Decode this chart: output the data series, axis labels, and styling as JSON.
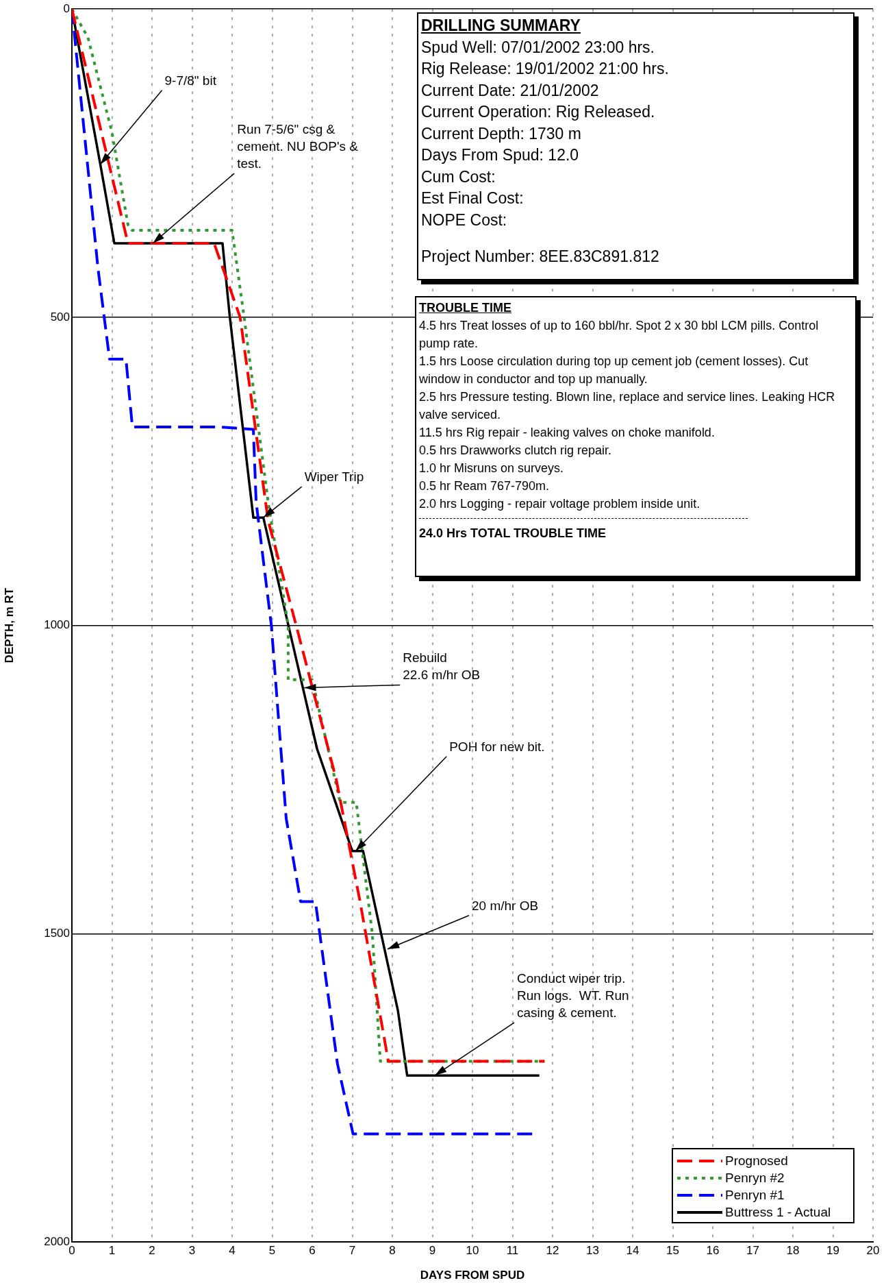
{
  "chart_data": {
    "type": "line",
    "xlabel": "DAYS FROM SPUD",
    "ylabel": "DEPTH, m RT",
    "xlim": [
      0,
      20
    ],
    "xticks": [
      0,
      1,
      2,
      3,
      4,
      5,
      6,
      7,
      8,
      9,
      10,
      11,
      12,
      13,
      14,
      15,
      16,
      17,
      18,
      19,
      20
    ],
    "ylim": [
      2000,
      0
    ],
    "yticks": [
      0,
      500,
      1000,
      1500,
      2000
    ],
    "grid": true,
    "legend": "bottom right",
    "marker": "none",
    "series": [
      {
        "name": "Prognosed",
        "color": "#ff0000",
        "line_style": "dashed",
        "x": [
          0,
          1.4,
          3.55,
          4.2,
          4.9,
          5.6,
          6.0,
          6.6,
          7.2,
          7.9,
          11.8
        ],
        "values": [
          0,
          380,
          380,
          500,
          830,
          1000,
          1100,
          1250,
          1450,
          1707,
          1707
        ]
      },
      {
        "name": "Penryn #2",
        "color": "#339933",
        "line_style": "dotted",
        "x": [
          0,
          0.4,
          1.0,
          1.4,
          1.5,
          4.0,
          4.3,
          4.9,
          5.4,
          5.4,
          6.0,
          6.7,
          7.1,
          7.5,
          7.7,
          11.8
        ],
        "values": [
          0,
          46,
          200,
          350,
          359,
          359,
          500,
          800,
          1000,
          1088,
          1088,
          1287,
          1287,
          1500,
          1707,
          1707
        ]
      },
      {
        "name": "Penryn #1",
        "color": "#0000ff",
        "line_style": "dashed",
        "x": [
          0,
          0.65,
          0.94,
          1.35,
          1.51,
          3.7,
          4.53,
          4.6,
          4.98,
          5.35,
          5.71,
          6.08,
          6.63,
          7.02,
          11.6
        ],
        "values": [
          0,
          420,
          568,
          568,
          678,
          678,
          682,
          800,
          1000,
          1313,
          1448,
          1448,
          1711,
          1825,
          1825
        ]
      },
      {
        "name": "Buttress 1 - Actual",
        "color": "#000000",
        "line_style": "solid",
        "x": [
          0,
          0.71,
          1.06,
          3.76,
          3.94,
          4.53,
          4.78,
          6.12,
          7.0,
          7.27,
          8.14,
          8.37,
          11.67
        ],
        "values": [
          0,
          252,
          380,
          380,
          498,
          825,
          825,
          1200,
          1366,
          1366,
          1625,
          1730,
          1730
        ]
      }
    ],
    "annotations": [
      "DRILLING SUMMARY",
      "Spud Well: 07/01/2002 23:00 hrs.",
      "Rig Release: 19/01/2002 21:00 hrs.",
      "Current Date: 21/01/2002",
      "Current Operation: Rig Released.",
      "Current Depth: 1730 m",
      "Days From Spud: 12.0",
      "Cum Cost:",
      "Est Final Cost:",
      "NOPE Cost:",
      "Project Number:  8EE.83C891.812",
      "TROUBLE TIME",
      "4.5 hrs  Treat losses of up to 160 bbl/hr.  Spot 2 x 30 bbl LCM pills. Control pump rate.",
      "1.5 hrs Loose circulation during top up cement job (cement losses). Cut window in conductor and top up manually.",
      "2.5 hrs Pressure testing.  Blown line, replace and service lines.  Leaking HCR valve serviced.",
      "11.5 hrs Rig repair - leaking valves on choke manifold.",
      "0.5 hrs Drawworks clutch rig repair.",
      "1.0 hr  Misruns on surveys.",
      "0.5 hr Ream 767-790m.",
      "2.0 hrs Logging - repair voltage problem inside unit.",
      "24.0 Hrs TOTAL TROUBLE TIME",
      {
        "text": "9-7/8\" bit",
        "x": 0.71,
        "y": 252
      },
      {
        "text": "Run 7-5/6\" csg &\ncement. NU BOP's &\ntest.",
        "x": 2.02,
        "y": 380
      },
      {
        "text": "Wiper Trip",
        "x": 4.78,
        "y": 825
      },
      {
        "text": "Rebuild\n22.6 m/hr OB",
        "x": 5.8,
        "y": 1101
      },
      {
        "text": "POH for new bit.",
        "x": 7.08,
        "y": 1366
      },
      {
        "text": "20 m/hr OB",
        "x": 7.88,
        "y": 1525
      },
      {
        "text": "Conduct wiper trip.\nRun logs.  WT. Run\ncasing & cement.",
        "x": 9.06,
        "y": 1730
      }
    ]
  }
}
